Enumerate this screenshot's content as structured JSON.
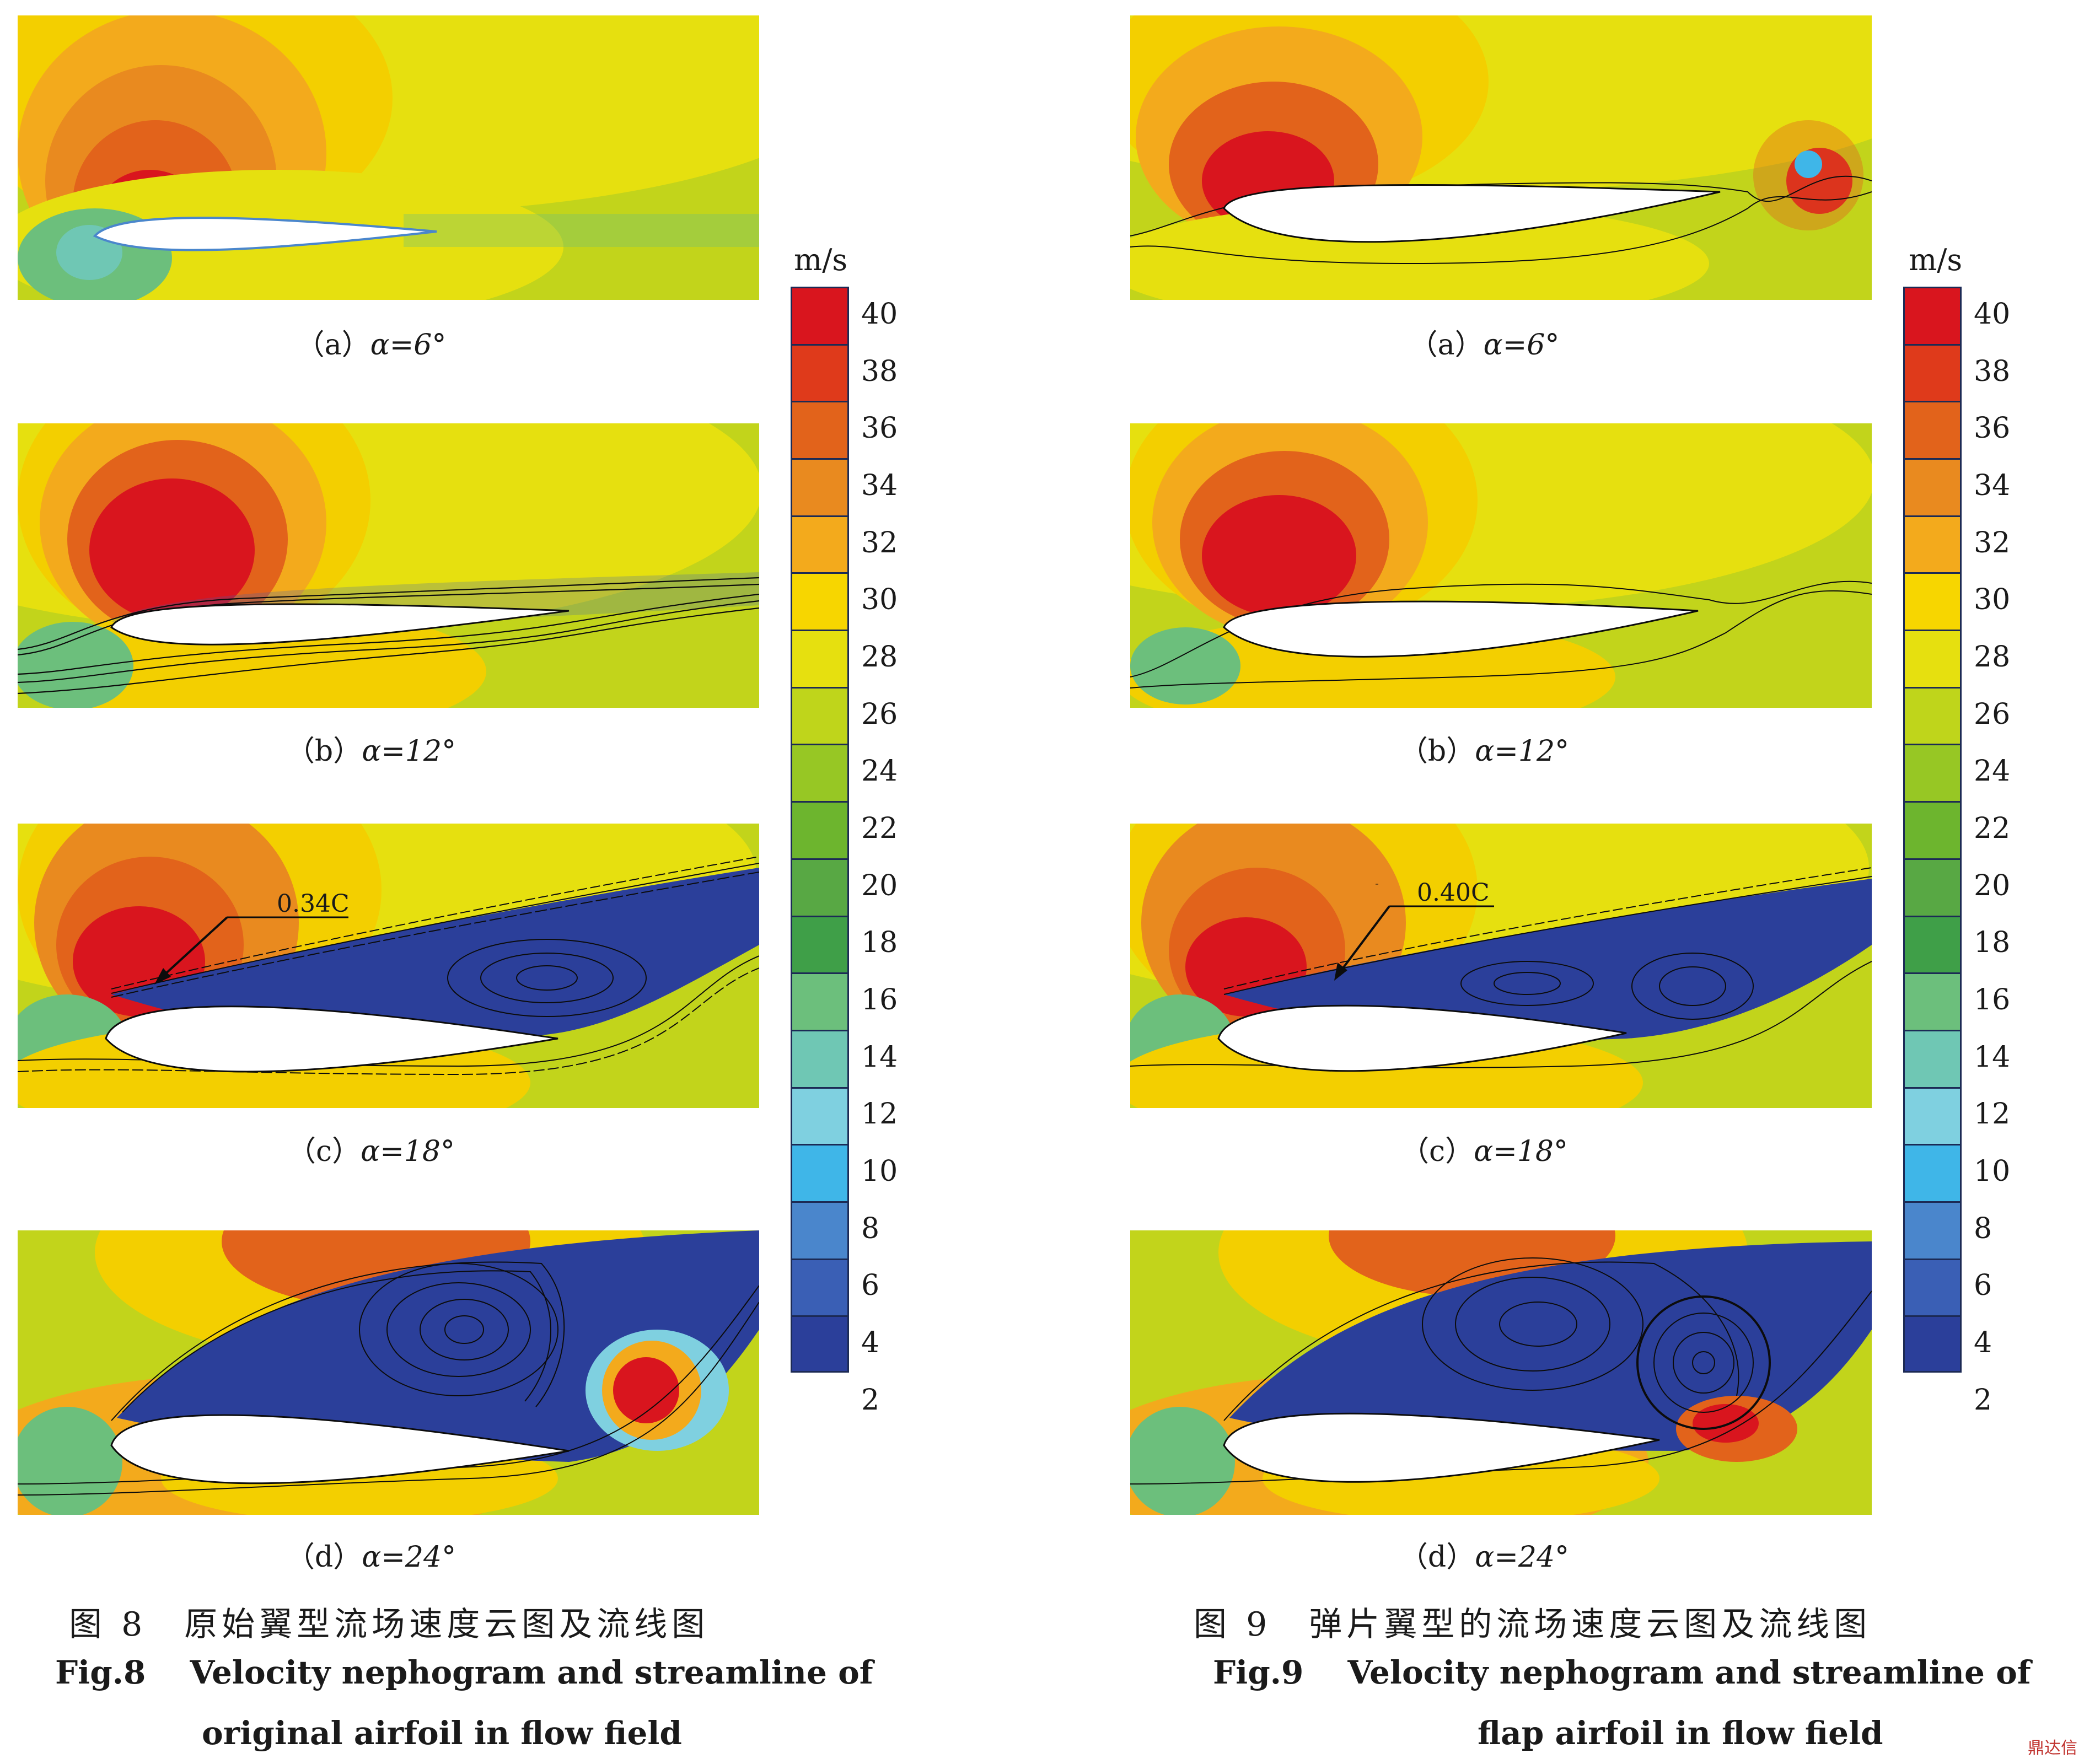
{
  "colors": {
    "palette": [
      "#2b3f9a",
      "#3a5fb5",
      "#4a86cc",
      "#3fb6e8",
      "#7fd0e0",
      "#6fc7b4",
      "#6cbf7c",
      "#3f9f48",
      "#58a844",
      "#6db52e",
      "#97c724",
      "#bfd51b",
      "#e6e00f",
      "#f7d600",
      "#f3aa1c",
      "#e98a1f",
      "#e2631b",
      "#df3a1b",
      "#d9151e"
    ],
    "stream": "#0c0c0c"
  },
  "figure8": {
    "captions": {
      "a": "（a）",
      "b": "（b）",
      "c": "（c）",
      "d": "（d）"
    },
    "angles": {
      "a": "α=6°",
      "b": "α=12°",
      "c": "α=18°",
      "d": "α=24°"
    },
    "annotation_c": "0.34C",
    "title_cn": "图 8　原始翼型流场速度云图及流线图",
    "title_en_prefix": "Fig.8",
    "title_en_line1": "Velocity nephogram and streamline of",
    "title_en_line2": "original airfoil in flow field"
  },
  "figure9": {
    "captions": {
      "a": "（a）",
      "b": "（b）",
      "c": "（c）",
      "d": "（d）"
    },
    "angles": {
      "a": "α=6°",
      "b": "α=12°",
      "c": "α=18°",
      "d": "α=24°"
    },
    "annotation_c": "0.40C",
    "title_cn": "图 9　弹片翼型的流场速度云图及流线图",
    "title_en_prefix": "Fig.9",
    "title_en_line1": "Velocity nephogram and streamline of",
    "title_en_line2": "flap airfoil in flow field"
  },
  "colorbar": {
    "unit": "m/s",
    "ticks": [
      "40",
      "38",
      "36",
      "34",
      "32",
      "30",
      "28",
      "26",
      "24",
      "22",
      "20",
      "18",
      "16",
      "14",
      "12",
      "10",
      "8",
      "6",
      "4",
      "2"
    ]
  },
  "watermark": "鼎达信"
}
